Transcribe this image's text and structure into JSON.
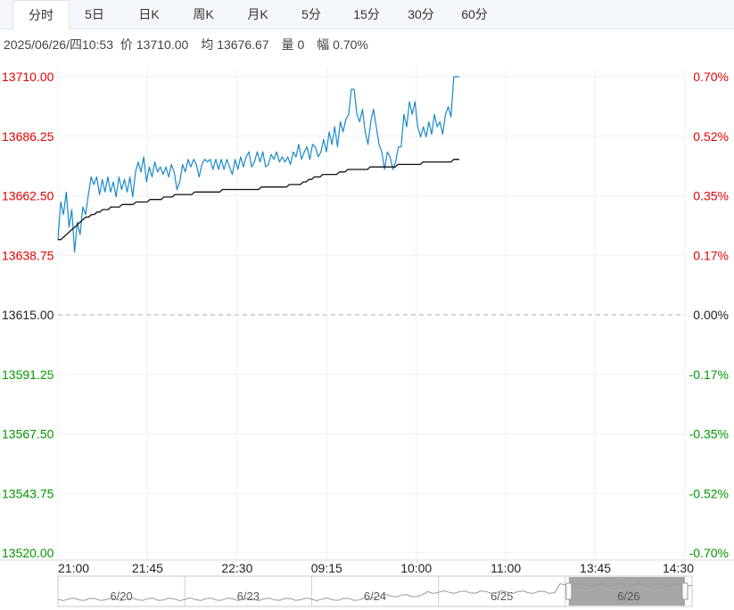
{
  "tabs": [
    {
      "label": "分时",
      "active": true
    },
    {
      "label": "5日",
      "active": false
    },
    {
      "label": "日K",
      "active": false
    },
    {
      "label": "周K",
      "active": false
    },
    {
      "label": "月K",
      "active": false
    },
    {
      "label": "5分",
      "active": false
    },
    {
      "label": "15分",
      "active": false
    },
    {
      "label": "30分",
      "active": false
    },
    {
      "label": "60分",
      "active": false
    }
  ],
  "info": {
    "datetime": "2025/06/26/四10:53",
    "price_label": "价",
    "price": "13710.00",
    "avg_label": "均",
    "avg": "13676.67",
    "volume_label": "量",
    "volume": "0",
    "change_label": "幅",
    "change": "0.70%"
  },
  "colors": {
    "up": "#e60000",
    "down": "#009900",
    "neutral": "#222222",
    "price_line": "#1a88c9",
    "avg_line": "#111111",
    "grid": "#eef0f3"
  },
  "chart_data": {
    "type": "line",
    "ylim": [
      13520.0,
      13710.0
    ],
    "y_ticks": [
      "13710.00",
      "13686.25",
      "13662.50",
      "13638.75",
      "13615.00",
      "13591.25",
      "13567.50",
      "13543.75",
      "13520.00"
    ],
    "y_ticks_right": [
      "0.70%",
      "0.52%",
      "0.35%",
      "0.17%",
      "0.00%",
      "-0.17%",
      "-0.35%",
      "-0.52%",
      "-0.70%"
    ],
    "reference_price": 13615.0,
    "x_ticks": [
      "21:00",
      "21:45",
      "22:30",
      "09:15",
      "10:00",
      "11:00",
      "13:45",
      "14:30"
    ],
    "series": [
      {
        "values": [
          13645,
          13660,
          13655,
          13664,
          13650,
          13657,
          13640,
          13652,
          13647,
          13658,
          13655,
          13663,
          13670,
          13667,
          13670,
          13663,
          13669,
          13664,
          13670,
          13664,
          13668,
          13662,
          13670,
          13665,
          13669,
          13664,
          13670,
          13662,
          13672,
          13676,
          13672,
          13678,
          13668,
          13674,
          13670,
          13676,
          13672,
          13674,
          13671,
          13674,
          13670,
          13675,
          13672,
          13665,
          13668,
          13675,
          13672,
          13677,
          13674,
          13677,
          13675,
          13670,
          13675,
          13677,
          13676,
          13677,
          13673,
          13677,
          13673,
          13677,
          13673,
          13677,
          13674,
          13671,
          13677,
          13673,
          13678,
          13674,
          13678,
          13680,
          13674,
          13676,
          13680,
          13676,
          13680,
          13674,
          13675,
          13679,
          13677,
          13680,
          13676,
          13678,
          13676,
          13678,
          13675,
          13680,
          13678,
          13683,
          13677,
          13680,
          13682,
          13677,
          13683,
          13682,
          13678,
          13680,
          13685,
          13680,
          13688,
          13683,
          13690,
          13682,
          13692,
          13688,
          13693,
          13695,
          13705,
          13705,
          13695,
          13692,
          13697,
          13688,
          13683,
          13692,
          13697,
          13690,
          13683,
          13680,
          13673,
          13680,
          13678,
          13673,
          13676,
          13682,
          13682,
          13695,
          13690,
          13700,
          13695,
          13700,
          13690,
          13686,
          13690,
          13686,
          13692,
          13687,
          13695,
          13690,
          13692,
          13687,
          13695,
          13698,
          13694,
          13710,
          13710,
          13710
        ],
        "color": "#1a88c9"
      },
      {
        "values": [
          13645,
          13645,
          13646,
          13647,
          13648,
          13649,
          13650,
          13651,
          13652,
          13653,
          13654,
          13654,
          13655,
          13655,
          13656,
          13656,
          13657,
          13657,
          13657,
          13658,
          13658,
          13658,
          13658,
          13659,
          13659,
          13659,
          13659,
          13659,
          13660,
          13660,
          13660,
          13660,
          13660,
          13661,
          13661,
          13661,
          13661,
          13661,
          13662,
          13662,
          13662,
          13662,
          13663,
          13663,
          13663,
          13663,
          13663,
          13663,
          13663,
          13664,
          13664,
          13664,
          13664,
          13664,
          13664,
          13664,
          13664,
          13664,
          13664,
          13665,
          13665,
          13665,
          13665,
          13665,
          13665,
          13665,
          13665,
          13665,
          13665,
          13665,
          13665,
          13665,
          13665,
          13666,
          13666,
          13666,
          13666,
          13666,
          13666,
          13666,
          13666,
          13666,
          13666,
          13667,
          13667,
          13667,
          13667,
          13667,
          13668,
          13668,
          13669,
          13669,
          13670,
          13670,
          13670,
          13671,
          13671,
          13671,
          13671,
          13671,
          13671,
          13672,
          13672,
          13672,
          13673,
          13673,
          13673,
          13673,
          13673,
          13673,
          13673,
          13673,
          13674,
          13674,
          13674,
          13674,
          13674,
          13674,
          13674,
          13674,
          13674,
          13674,
          13675,
          13675,
          13675,
          13675,
          13675,
          13675,
          13675,
          13675,
          13675,
          13676,
          13676,
          13676,
          13676,
          13676,
          13676,
          13676,
          13676,
          13676,
          13676,
          13676,
          13677,
          13677,
          13677
        ],
        "color": "#111111"
      }
    ],
    "navigator": {
      "labels": [
        "6/20",
        "6/23",
        "6/24",
        "6/25",
        "6/26"
      ]
    }
  }
}
